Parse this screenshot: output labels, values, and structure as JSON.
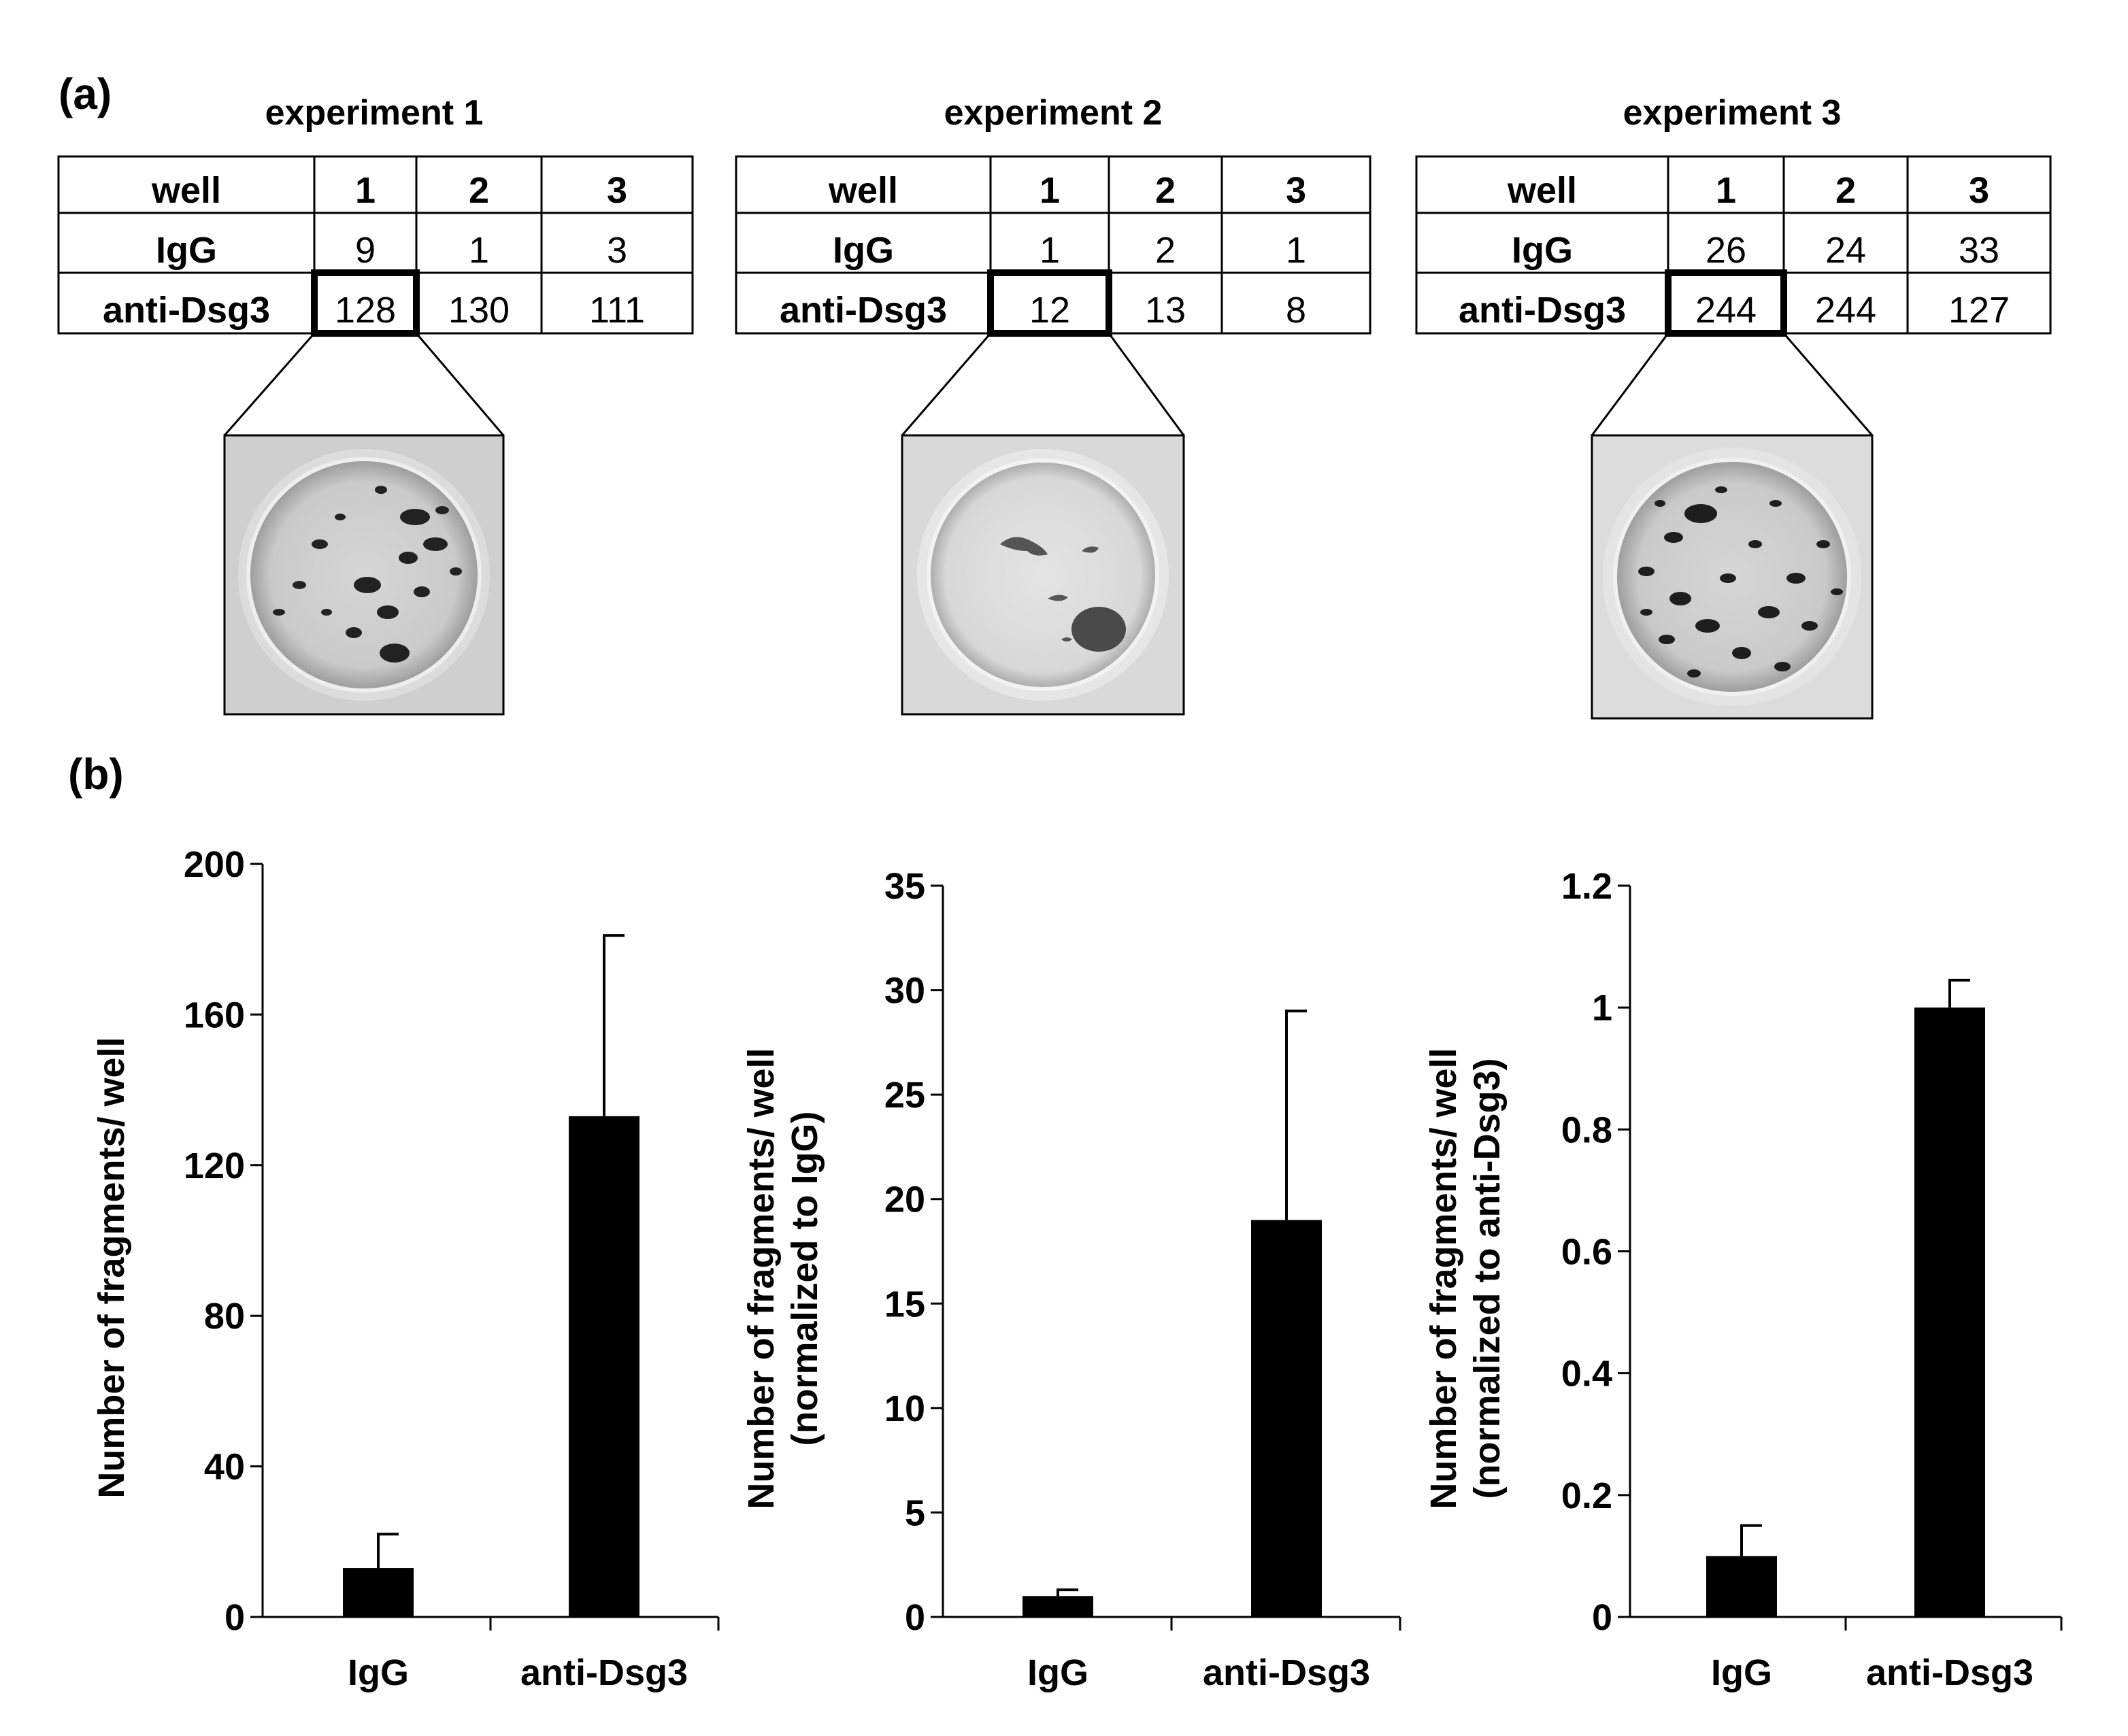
{
  "panel_a": {
    "label": "(a)",
    "experiments": [
      {
        "title": "experiment 1",
        "header": [
          "well",
          "1",
          "2",
          "3"
        ],
        "rows": [
          {
            "label": "IgG",
            "values": [
              "9",
              "1",
              "3"
            ]
          },
          {
            "label": "anti-Dsg3",
            "values": [
              "128",
              "130",
              "111"
            ]
          }
        ],
        "highlighted_cell": "128",
        "photo": "well-photo-many-fragments"
      },
      {
        "title": "experiment 2",
        "header": [
          "well",
          "1",
          "2",
          "3"
        ],
        "rows": [
          {
            "label": "IgG",
            "values": [
              "1",
              "2",
              "1"
            ]
          },
          {
            "label": "anti-Dsg3",
            "values": [
              "12",
              "13",
              "8"
            ]
          }
        ],
        "highlighted_cell": "12",
        "photo": "well-photo-few-fragments"
      },
      {
        "title": "experiment 3",
        "header": [
          "well",
          "1",
          "2",
          "3"
        ],
        "rows": [
          {
            "label": "IgG",
            "values": [
              "26",
              "24",
              "33"
            ]
          },
          {
            "label": "anti-Dsg3",
            "values": [
              "244",
              "244",
              "127"
            ]
          }
        ],
        "highlighted_cell": "244",
        "photo": "well-photo-many-fragments"
      }
    ]
  },
  "panel_b": {
    "label": "(b)"
  },
  "chart_data": [
    {
      "type": "bar",
      "categories": [
        "IgG",
        "anti-Dsg3"
      ],
      "values": [
        13,
        133
      ],
      "error": [
        9,
        48
      ],
      "ylabel": "Number of fragments/ well",
      "ylim": [
        0,
        200
      ],
      "yticks": [
        "0",
        "40",
        "80",
        "120",
        "160",
        "200"
      ],
      "bar_color": "#000000"
    },
    {
      "type": "bar",
      "categories": [
        "IgG",
        "anti-Dsg3"
      ],
      "values": [
        1,
        19
      ],
      "error": [
        0.3,
        10
      ],
      "ylabel": "Number of fragments/ well",
      "ylabel2": "(normalized to IgG)",
      "ylim": [
        0,
        35
      ],
      "yticks": [
        "0",
        "5",
        "10",
        "15",
        "20",
        "25",
        "30",
        "35"
      ],
      "bar_color": "#000000"
    },
    {
      "type": "bar",
      "categories": [
        "IgG",
        "anti-Dsg3"
      ],
      "values": [
        0.1,
        1
      ],
      "error": [
        0.05,
        0.045
      ],
      "ylabel": "Number of fragments/ well",
      "ylabel2": "(normalized to anti-Dsg3)",
      "ylim": [
        0,
        1.2
      ],
      "yticks": [
        "0",
        "0.2",
        "0.4",
        "0.6",
        "0.8",
        "1",
        "1.2"
      ],
      "bar_color": "#000000"
    }
  ]
}
